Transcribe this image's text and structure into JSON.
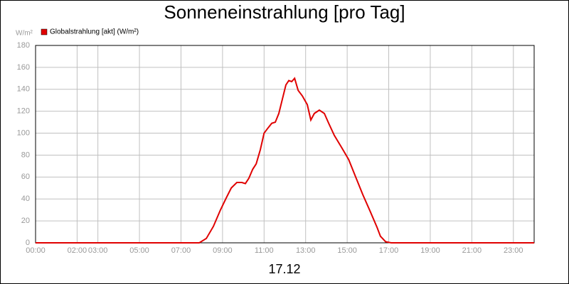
{
  "chart_data": {
    "type": "line",
    "title": "Sonneneinstrahlung [pro Tag]",
    "y_label": "W/m²",
    "x_label": "17.12",
    "x": [
      0,
      7.5,
      7.88,
      8.22,
      8.56,
      8.9,
      9.18,
      9.42,
      9.69,
      9.93,
      10.1,
      10.27,
      10.45,
      10.62,
      10.82,
      11.0,
      11.2,
      11.37,
      11.54,
      11.71,
      11.88,
      12.05,
      12.19,
      12.33,
      12.47,
      12.64,
      12.84,
      13.08,
      13.25,
      13.42,
      13.66,
      13.9,
      14.11,
      14.38,
      14.73,
      15.07,
      15.41,
      15.75,
      16.1,
      16.44,
      16.6,
      16.85,
      17.12,
      24
    ],
    "series": [
      {
        "name": "Globalstrahlung [akt] (W/m²)",
        "color": "#e00000",
        "values": [
          0,
          0,
          0,
          4,
          15,
          30,
          41,
          50,
          55,
          55,
          54,
          59,
          67,
          72,
          85,
          100,
          105,
          109,
          110,
          118,
          131,
          144,
          148,
          147,
          150,
          139,
          134,
          126,
          112,
          118,
          121,
          118,
          109,
          98,
          87,
          76,
          60,
          44,
          29,
          14,
          6,
          1,
          0,
          0
        ]
      }
    ],
    "xlim": [
      0,
      24
    ],
    "xticks": [
      {
        "value": 0,
        "label": "00:00"
      },
      {
        "value": 2,
        "label": "02:00"
      },
      {
        "value": 3,
        "label": "03:00"
      },
      {
        "value": 5,
        "label": "05:00"
      },
      {
        "value": 7,
        "label": "07:00"
      },
      {
        "value": 9,
        "label": "09:00"
      },
      {
        "value": 11,
        "label": "11:00"
      },
      {
        "value": 13,
        "label": "13:00"
      },
      {
        "value": 15,
        "label": "15:00"
      },
      {
        "value": 17,
        "label": "17:00"
      },
      {
        "value": 19,
        "label": "19:00"
      },
      {
        "value": 21,
        "label": "21:00"
      },
      {
        "value": 23,
        "label": "23:00"
      }
    ],
    "ylim": [
      0,
      180
    ],
    "yticks": [
      0,
      20,
      40,
      60,
      80,
      100,
      120,
      140,
      160,
      180
    ],
    "grid": true,
    "legend": "top-left"
  }
}
